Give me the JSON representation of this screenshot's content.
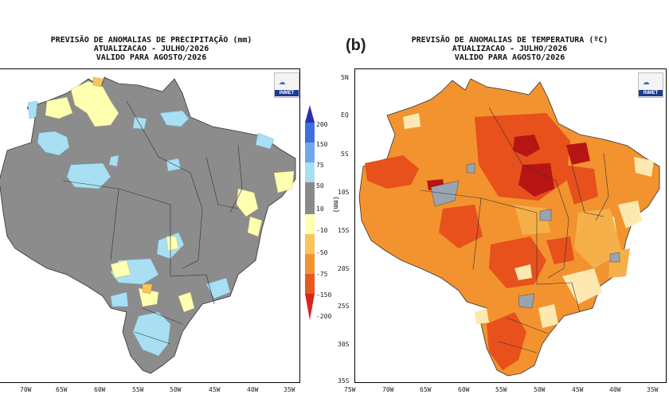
{
  "panel_a": {
    "title_lines": [
      "PREVISÃO DE ANOMALIAS DE PRECIPITAÇÃO (mm)",
      "ATUALIZACAO - JULHO/2026",
      "VALIDO PARA AGOSTO/2026"
    ],
    "lon_labels": [
      "70W",
      "65W",
      "60W",
      "55W",
      "50W",
      "45W",
      "40W",
      "35W"
    ],
    "colorbar": {
      "labels": [
        "200",
        "150",
        "75",
        "50",
        "10",
        "-10",
        "-50",
        "-75",
        "-150",
        "-200"
      ],
      "colors": [
        "#2a2fb0",
        "#3d6fe0",
        "#6fa8ea",
        "#a8dff2",
        "#8a8a8a",
        "#ffffb0",
        "#f9c55a",
        "#f2932f",
        "#e65a1c",
        "#d6261a"
      ],
      "units": "(mm)"
    },
    "logo_text": "INMET"
  },
  "panel_b": {
    "letter": "(b)",
    "title_lines": [
      "PREVISÃO DE ANOMALIAS DE TEMPERATURA (ºC)",
      "ATUALIZACAO - JULHO/2026",
      "VALIDO PARA AGOSTO/2026"
    ],
    "lat_labels": [
      "5N",
      "EQ",
      "5S",
      "10S",
      "15S",
      "20S",
      "25S",
      "30S",
      "35S"
    ],
    "lon_labels": [
      "75W",
      "70W",
      "65W",
      "60W",
      "55W",
      "50W",
      "45W",
      "40W",
      "35W"
    ],
    "logo_text": "INMET"
  },
  "colors": {
    "gray": "#8c8c8c",
    "light_blue": "#a8dff2",
    "light_yellow": "#ffffb0",
    "orange": "#f2932f",
    "orange_light": "#f6b04a",
    "red_orange": "#e8501c",
    "dark_red": "#b81414",
    "pale": "#fde9b0"
  }
}
